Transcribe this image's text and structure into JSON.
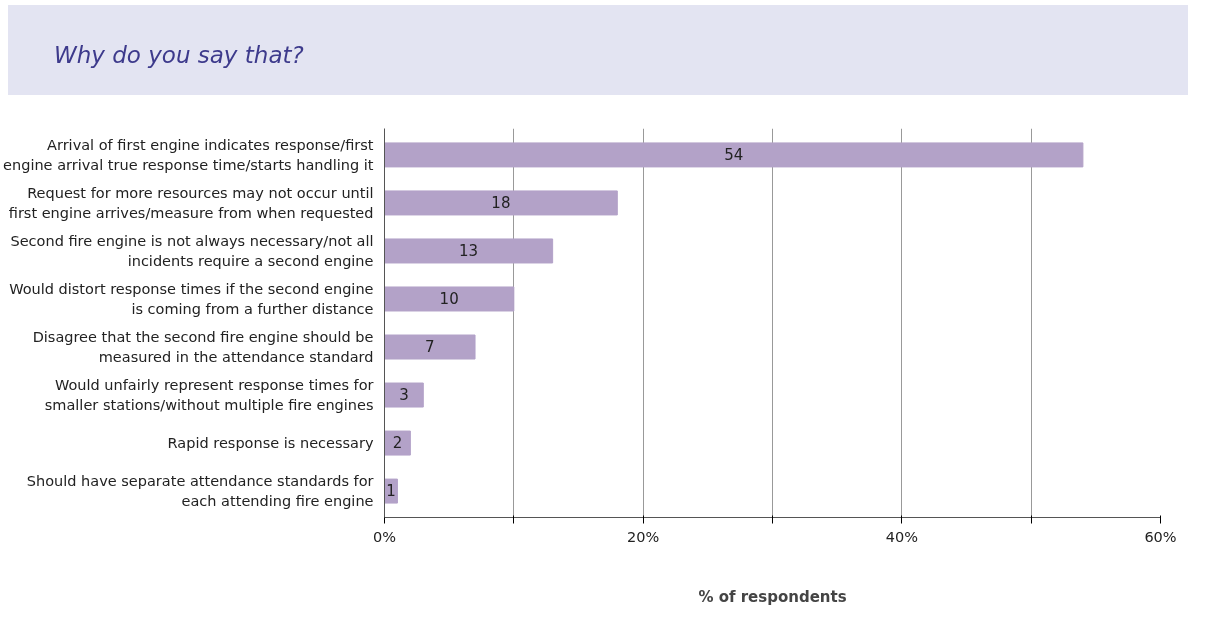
{
  "chart_data": {
    "type": "bar",
    "orientation": "horizontal",
    "title": "Why do you say that?",
    "xlabel": "% of respondents",
    "categories": [
      "Arrival of first engine indicates response/first\nengine arrival true response time/starts handling it",
      "Request for more resources may not occur until\nfirst engine arrives/measure from when requested",
      "Second fire engine is not always necessary/not all\nincidents require a second engine",
      "Would distort response times if the second engine\nis coming from a further distance",
      "Disagree that the second fire engine should be\nmeasured in the attendance standard",
      "Would unfairly represent response times for\nsmaller stations/without multiple fire engines",
      "Rapid response is necessary",
      "Should have separate attendance standards for\neach attending fire engine"
    ],
    "values": [
      54,
      18,
      13,
      10,
      7,
      3,
      2,
      1
    ],
    "color": "#b3a2c8",
    "data_labels": true,
    "xlim": [
      0,
      60
    ],
    "xticks": [
      {
        "value": 0,
        "label": "0%"
      },
      {
        "value": 10,
        "label": null
      },
      {
        "value": 20,
        "label": "20%"
      },
      {
        "value": 30,
        "label": null
      },
      {
        "value": 40,
        "label": "40%"
      },
      {
        "value": 50,
        "label": null
      },
      {
        "value": 60,
        "label": "60%"
      }
    ],
    "grid": "x"
  }
}
